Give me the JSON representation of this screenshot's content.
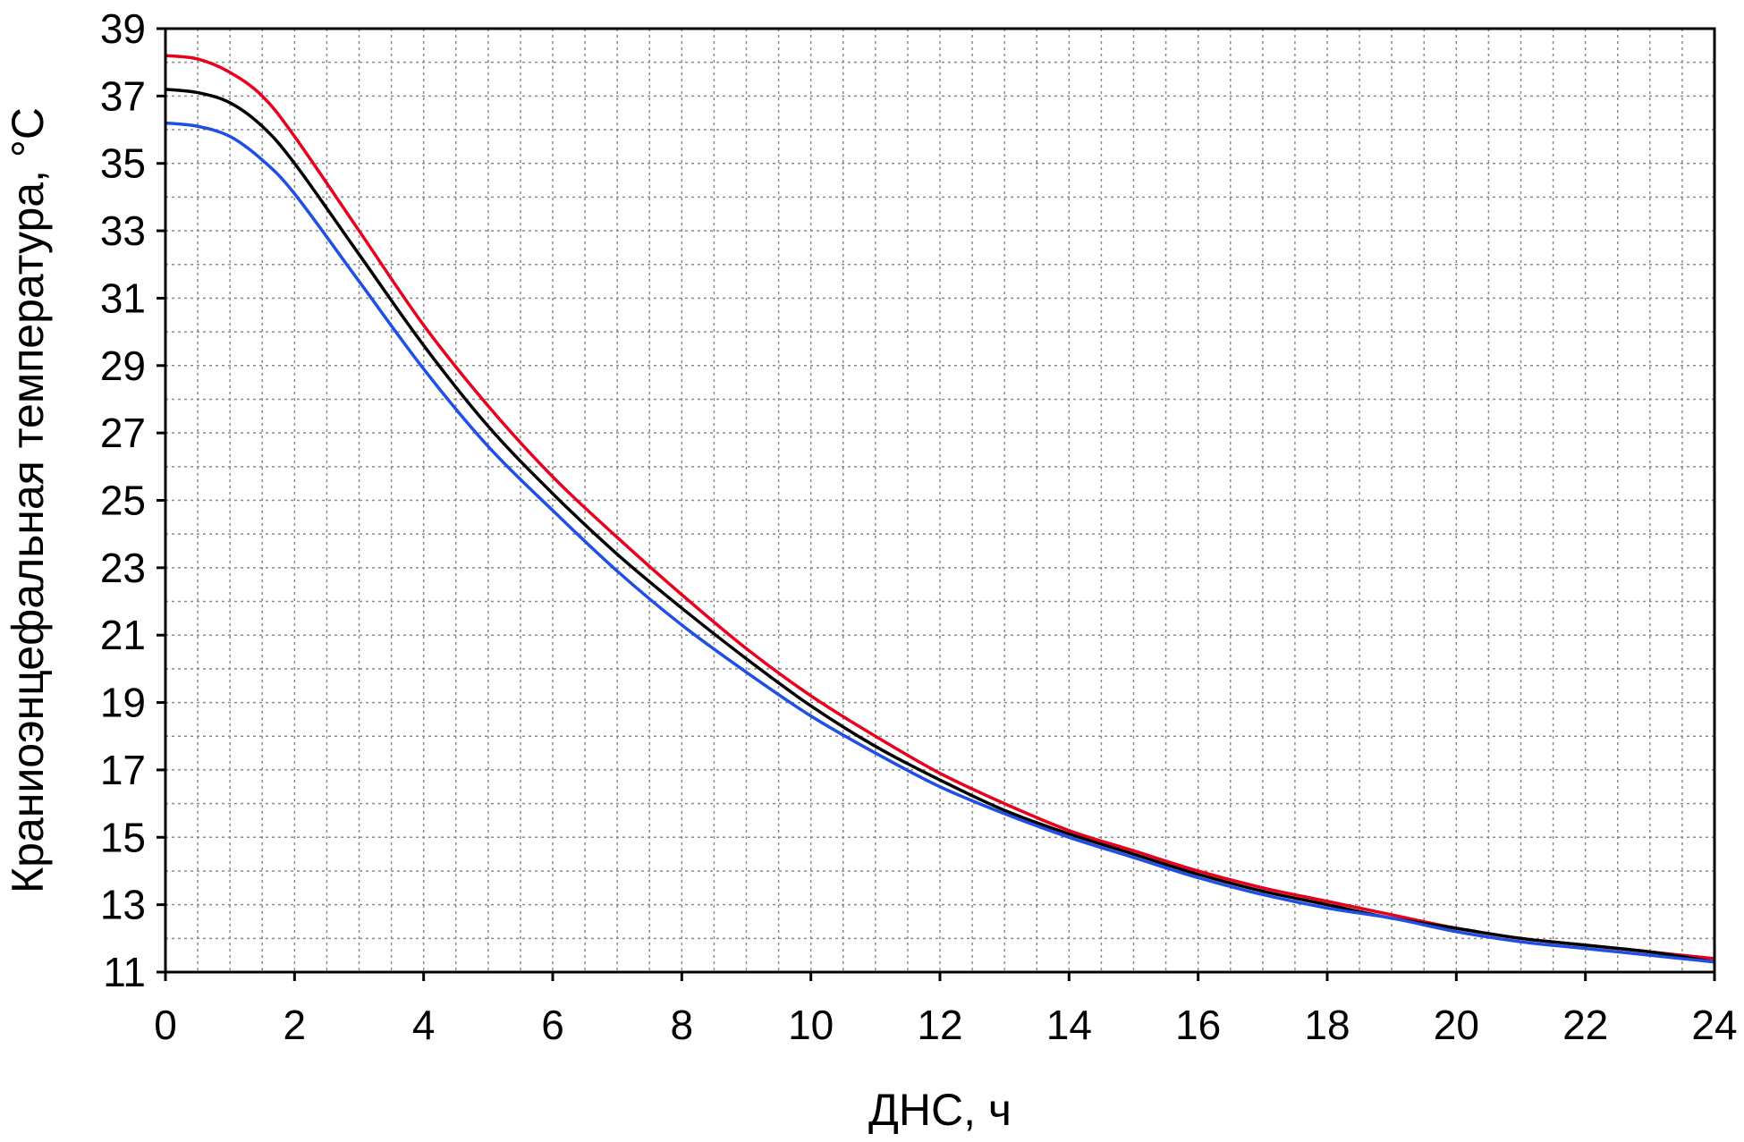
{
  "chart_data": {
    "type": "line",
    "title": "",
    "xlabel": "ДНС, ч",
    "ylabel": "Краниоэнцефальная температура, °С",
    "xlim": [
      0,
      24
    ],
    "ylim": [
      11,
      39
    ],
    "xticks": [
      "0",
      "2",
      "4",
      "6",
      "8",
      "10",
      "12",
      "14",
      "16",
      "18",
      "20",
      "22",
      "24"
    ],
    "yticks": [
      "11",
      "13",
      "15",
      "17",
      "19",
      "21",
      "23",
      "25",
      "27",
      "29",
      "31",
      "33",
      "35",
      "37",
      "39"
    ],
    "grid": true,
    "legend": "none",
    "series": [
      {
        "color": "#e8001c",
        "x": [
          0,
          0.5,
          1,
          1.5,
          2,
          3,
          4,
          5,
          6,
          7,
          8,
          9,
          10,
          11,
          12,
          13,
          14,
          15,
          16,
          17,
          18,
          19,
          20,
          21,
          22,
          23,
          24
        ],
        "y": [
          38.2,
          38.1,
          37.7,
          37.0,
          35.8,
          33.0,
          30.2,
          27.8,
          25.7,
          23.9,
          22.2,
          20.6,
          19.2,
          18.0,
          16.9,
          16.0,
          15.2,
          14.6,
          14.0,
          13.5,
          13.1,
          12.7,
          12.3,
          12.0,
          11.8,
          11.6,
          11.4
        ]
      },
      {
        "color": "#000000",
        "x": [
          0,
          0.5,
          1,
          1.5,
          2,
          3,
          4,
          5,
          6,
          7,
          8,
          9,
          10,
          11,
          12,
          13,
          14,
          15,
          16,
          17,
          18,
          19,
          20,
          21,
          22,
          23,
          24
        ],
        "y": [
          37.2,
          37.1,
          36.8,
          36.1,
          35.0,
          32.3,
          29.6,
          27.2,
          25.2,
          23.4,
          21.8,
          20.3,
          18.9,
          17.7,
          16.7,
          15.8,
          15.1,
          14.5,
          13.9,
          13.4,
          13.0,
          12.6,
          12.3,
          12.0,
          11.8,
          11.6,
          11.3
        ]
      },
      {
        "color": "#1f4fe6",
        "x": [
          0,
          0.5,
          1,
          1.5,
          2,
          3,
          4,
          5,
          6,
          7,
          8,
          9,
          10,
          11,
          12,
          13,
          14,
          15,
          16,
          17,
          18,
          19,
          20,
          21,
          22,
          23,
          24
        ],
        "y": [
          36.2,
          36.1,
          35.8,
          35.1,
          34.1,
          31.5,
          28.9,
          26.6,
          24.7,
          22.9,
          21.3,
          19.9,
          18.6,
          17.5,
          16.5,
          15.7,
          15.0,
          14.4,
          13.8,
          13.3,
          12.9,
          12.6,
          12.2,
          11.9,
          11.7,
          11.5,
          11.3
        ]
      }
    ]
  }
}
